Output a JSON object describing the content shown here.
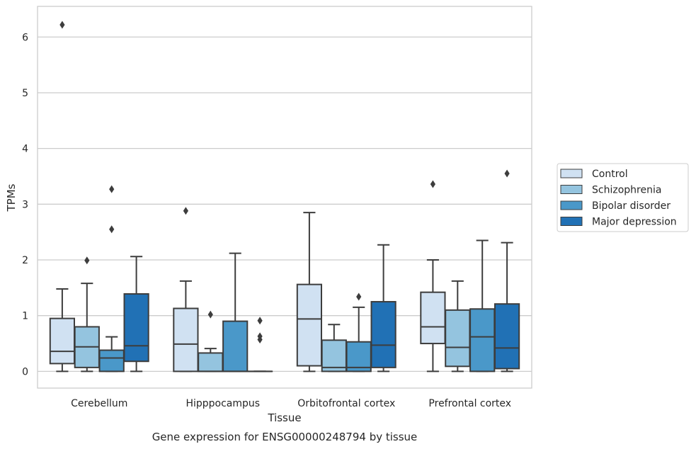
{
  "chart_data": {
    "type": "box",
    "title": "",
    "caption": "Gene expression for ENSG00000248794 by tissue",
    "xlabel": "Tissue",
    "ylabel": "TPMs",
    "ylim": [
      -0.3,
      6.55
    ],
    "yticks": [
      0,
      1,
      2,
      3,
      4,
      5,
      6
    ],
    "grid": "horizontal",
    "legend_position": "right",
    "categories": [
      "Cerebellum",
      "Hipppocampus",
      "Orbitofrontal cortex",
      "Prefrontal cortex"
    ],
    "series": [
      {
        "name": "Control",
        "color": "#d0e1f2",
        "boxes": [
          {
            "whislo": 0,
            "q1": 0.14,
            "med": 0.36,
            "q3": 0.95,
            "whishi": 1.48,
            "fliers": [
              6.22
            ]
          },
          {
            "whislo": 0,
            "q1": 0,
            "med": 0.49,
            "q3": 1.13,
            "whishi": 1.62,
            "fliers": [
              2.88
            ]
          },
          {
            "whislo": 0,
            "q1": 0.1,
            "med": 0.94,
            "q3": 1.56,
            "whishi": 2.85,
            "fliers": []
          },
          {
            "whislo": 0,
            "q1": 0.5,
            "med": 0.8,
            "q3": 1.42,
            "whishi": 2.0,
            "fliers": [
              3.36
            ]
          }
        ]
      },
      {
        "name": "Schizophrenia",
        "color": "#94c4df",
        "boxes": [
          {
            "whislo": 0,
            "q1": 0.07,
            "med": 0.44,
            "q3": 0.8,
            "whishi": 1.58,
            "fliers": [
              1.99
            ]
          },
          {
            "whislo": 0,
            "q1": 0,
            "med": 0,
            "q3": 0.33,
            "whishi": 0.41,
            "fliers": [
              1.02
            ]
          },
          {
            "whislo": 0,
            "q1": 0,
            "med": 0.07,
            "q3": 0.56,
            "whishi": 0.84,
            "fliers": []
          },
          {
            "whislo": 0,
            "q1": 0.09,
            "med": 0.43,
            "q3": 1.1,
            "whishi": 1.62,
            "fliers": []
          }
        ]
      },
      {
        "name": "Bipolar disorder",
        "color": "#4a98c9",
        "boxes": [
          {
            "whislo": 0,
            "q1": 0,
            "med": 0.24,
            "q3": 0.38,
            "whishi": 0.62,
            "fliers": [
              2.55,
              3.27
            ]
          },
          {
            "whislo": 0,
            "q1": 0,
            "med": 0,
            "q3": 0.9,
            "whishi": 2.12,
            "fliers": []
          },
          {
            "whislo": 0,
            "q1": 0,
            "med": 0.07,
            "q3": 0.53,
            "whishi": 1.15,
            "fliers": [
              1.34
            ]
          },
          {
            "whislo": 0,
            "q1": 0,
            "med": 0.62,
            "q3": 1.12,
            "whishi": 2.35,
            "fliers": []
          }
        ]
      },
      {
        "name": "Major depression",
        "color": "#2171b5",
        "boxes": [
          {
            "whislo": 0,
            "q1": 0.18,
            "med": 0.46,
            "q3": 1.39,
            "whishi": 2.06,
            "fliers": []
          },
          {
            "whislo": 0,
            "q1": 0,
            "med": 0,
            "q3": 0,
            "whishi": 0,
            "fliers": [
              0.57,
              0.63,
              0.91
            ]
          },
          {
            "whislo": 0,
            "q1": 0.07,
            "med": 0.47,
            "q3": 1.25,
            "whishi": 2.27,
            "fliers": []
          },
          {
            "whislo": 0,
            "q1": 0.05,
            "med": 0.42,
            "q3": 1.21,
            "whishi": 2.31,
            "fliers": [
              3.55
            ]
          }
        ]
      }
    ]
  }
}
